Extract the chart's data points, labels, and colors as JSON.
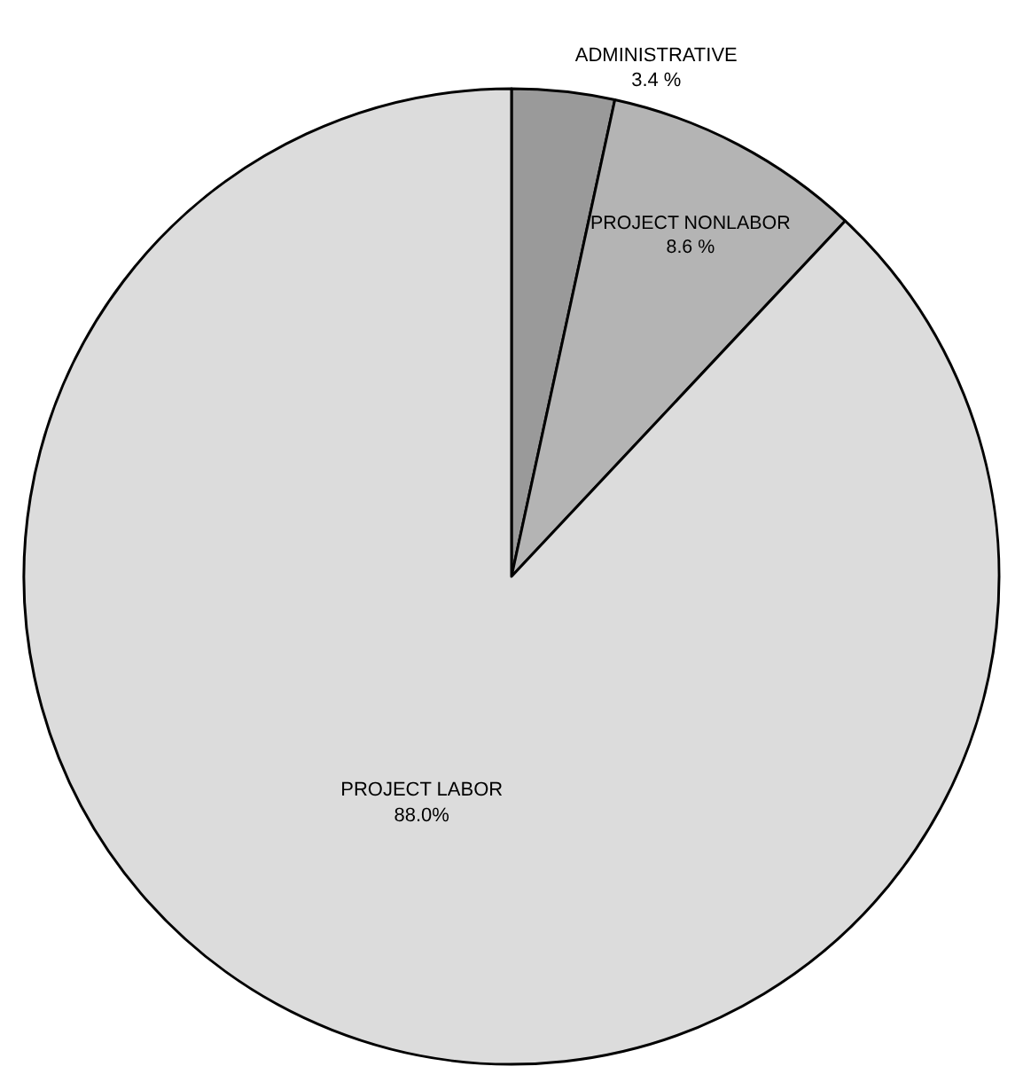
{
  "chart_data": {
    "type": "pie",
    "categories": [
      "ADMINISTRATIVE",
      "PROJECT NONLABOR",
      "PROJECT LABOR"
    ],
    "values": [
      3.4,
      8.6,
      88.0
    ],
    "value_labels": [
      "3.4 %",
      "8.6 %",
      "88.0%"
    ],
    "colors": [
      "#9a9a9a",
      "#b4b4b4",
      "#dcdcdc"
    ],
    "legend": false
  }
}
